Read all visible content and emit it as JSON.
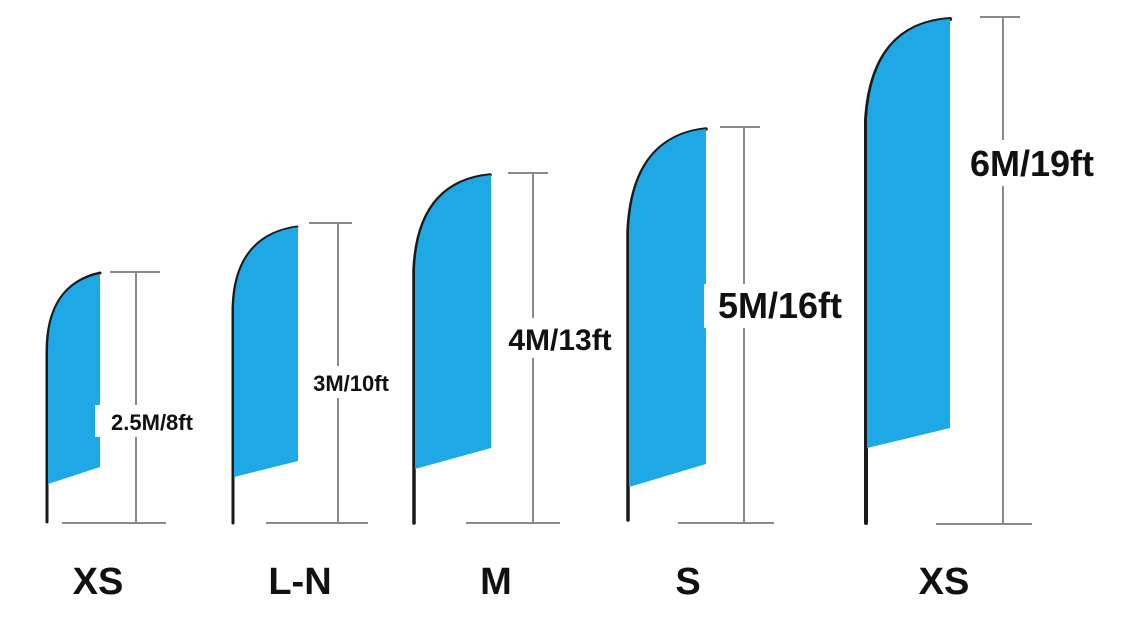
{
  "colors": {
    "flag": "#1fa8e6",
    "pole": "#1a1a1a",
    "dimension_line": "#8a8a8a",
    "text": "#111111",
    "background": "#ffffff"
  },
  "flags": [
    {
      "size_label": "XS",
      "height_label": "2.5M/8ft"
    },
    {
      "size_label": "L-N",
      "height_label": "3M/10ft"
    },
    {
      "size_label": "M",
      "height_label": "4M/13ft"
    },
    {
      "size_label": "S",
      "height_label": "5M/16ft"
    },
    {
      "size_label": "XS",
      "height_label": "6M/19ft"
    }
  ]
}
